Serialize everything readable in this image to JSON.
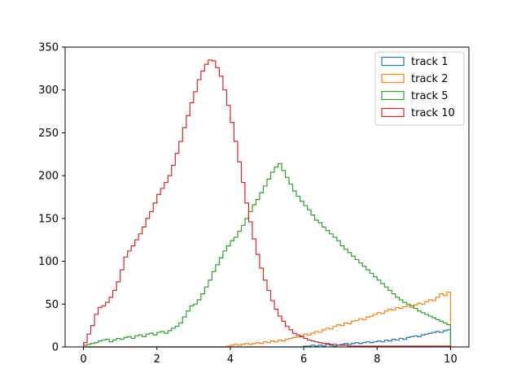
{
  "chart_data": {
    "type": "histogram",
    "xlim": [
      -0.5,
      10.5
    ],
    "ylim": [
      0,
      350
    ],
    "x_ticks": [
      0,
      2,
      4,
      6,
      8,
      10
    ],
    "y_ticks": [
      0,
      50,
      100,
      150,
      200,
      250,
      300,
      350
    ],
    "bin_range": [
      0,
      10
    ],
    "bin_count": 100,
    "grid": false,
    "legend_position": "top-right",
    "series": [
      {
        "name": "track 1",
        "color": "#1f77b4",
        "counts": [
          0,
          0,
          0,
          0,
          0,
          0,
          0,
          0,
          0,
          0,
          0,
          0,
          0,
          0,
          0,
          0,
          0,
          0,
          0,
          0,
          0,
          0,
          0,
          0,
          0,
          0,
          0,
          0,
          0,
          0,
          0,
          0,
          0,
          0,
          0,
          0,
          0,
          0,
          0,
          0,
          0,
          0,
          0,
          0,
          0,
          0,
          0,
          0,
          0,
          0,
          0,
          0,
          0,
          0,
          0,
          0,
          0,
          0,
          0,
          0,
          1,
          1,
          2,
          1,
          2,
          1,
          3,
          2,
          1,
          2,
          3,
          4,
          3,
          4,
          5,
          4,
          5,
          6,
          5,
          6,
          7,
          6,
          8,
          7,
          9,
          8,
          10,
          9,
          11,
          12,
          13,
          12,
          14,
          15,
          16,
          17,
          18,
          17,
          19,
          20
        ]
      },
      {
        "name": "track 2",
        "color": "#ff7f0e",
        "counts": [
          0,
          0,
          0,
          0,
          0,
          0,
          0,
          0,
          0,
          0,
          0,
          0,
          0,
          0,
          0,
          0,
          0,
          0,
          0,
          0,
          0,
          0,
          0,
          0,
          0,
          0,
          0,
          0,
          0,
          0,
          0,
          0,
          0,
          0,
          0,
          0,
          0,
          0,
          0,
          1,
          2,
          3,
          2,
          3,
          4,
          3,
          4,
          5,
          4,
          6,
          5,
          7,
          6,
          8,
          7,
          9,
          10,
          11,
          12,
          13,
          15,
          14,
          16,
          18,
          17,
          20,
          22,
          21,
          24,
          26,
          25,
          28,
          27,
          30,
          31,
          33,
          32,
          35,
          36,
          38,
          40,
          39,
          42,
          44,
          43,
          46,
          45,
          47,
          48,
          46,
          49,
          51,
          50,
          53,
          55,
          54,
          58,
          62,
          60,
          64
        ]
      },
      {
        "name": "track 5",
        "color": "#2ca02c",
        "counts": [
          2,
          3,
          4,
          5,
          7,
          8,
          9,
          6,
          8,
          10,
          9,
          11,
          12,
          10,
          13,
          14,
          12,
          15,
          16,
          14,
          17,
          18,
          16,
          19,
          22,
          24,
          28,
          35,
          42,
          48,
          50,
          55,
          62,
          70,
          78,
          88,
          96,
          104,
          112,
          118,
          124,
          128,
          135,
          142,
          150,
          158,
          166,
          172,
          180,
          188,
          196,
          204,
          210,
          214,
          206,
          198,
          190,
          182,
          176,
          170,
          165,
          160,
          154,
          148,
          145,
          140,
          136,
          132,
          128,
          124,
          118,
          114,
          110,
          106,
          102,
          98,
          94,
          90,
          86,
          82,
          78,
          74,
          70,
          66,
          62,
          58,
          55,
          52,
          50,
          48,
          45,
          42,
          40,
          38,
          36,
          34,
          32,
          30,
          28,
          26
        ]
      },
      {
        "name": "track 10",
        "color": "#d62728",
        "counts": [
          5,
          15,
          25,
          38,
          46,
          48,
          52,
          58,
          66,
          76,
          90,
          105,
          112,
          118,
          125,
          132,
          140,
          150,
          158,
          168,
          178,
          185,
          192,
          200,
          212,
          226,
          240,
          256,
          270,
          285,
          298,
          312,
          322,
          330,
          335,
          334,
          326,
          316,
          300,
          282,
          262,
          240,
          216,
          192,
          168,
          146,
          126,
          108,
          92,
          78,
          66,
          54,
          44,
          36,
          30,
          24,
          20,
          16,
          14,
          12,
          10,
          8,
          7,
          6,
          5,
          4,
          4,
          3,
          3,
          2,
          2,
          2,
          1,
          1,
          1,
          1,
          1,
          1,
          1,
          1,
          1,
          1,
          1,
          1,
          1,
          1,
          1,
          1,
          1,
          1,
          1,
          1,
          1,
          1,
          1,
          1,
          1,
          1,
          1,
          1
        ]
      }
    ]
  }
}
